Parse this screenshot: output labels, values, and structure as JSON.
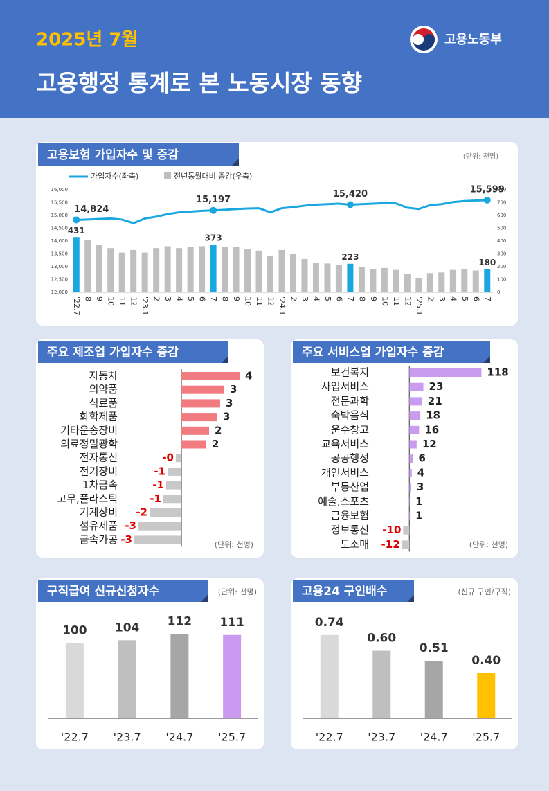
{
  "header": {
    "date": "2025년 7월",
    "title": "고용행정 통계로 본 노동시장 동향",
    "ministry": "고용노동부"
  },
  "chart_data": [
    {
      "type": "combo",
      "title": "고용보험 가입자수 및 증감",
      "unit": "(단위: 천명)",
      "categories": [
        "'22.7",
        "8",
        "9",
        "10",
        "11",
        "12",
        "'23.1",
        "2",
        "3",
        "4",
        "5",
        "6",
        "7",
        "8",
        "9",
        "10",
        "11",
        "12",
        "'24.1",
        "2",
        "3",
        "4",
        "5",
        "6",
        "7",
        "8",
        "9",
        "10",
        "11",
        "12",
        "'25.1",
        "2",
        "3",
        "4",
        "5",
        "6",
        "7"
      ],
      "series": [
        {
          "name": "가입자수(좌축)",
          "type": "line",
          "color": "#1aa7e0",
          "values": [
            14824,
            14840,
            14860,
            14880,
            14840,
            14700,
            14880,
            14950,
            15050,
            15120,
            15150,
            15180,
            15197,
            15220,
            15250,
            15270,
            15280,
            15120,
            15280,
            15320,
            15380,
            15420,
            15440,
            15460,
            15420,
            15440,
            15460,
            15480,
            15470,
            15300,
            15250,
            15400,
            15440,
            15520,
            15560,
            15580,
            15599
          ],
          "value_labels": [
            "14,824",
            null,
            null,
            null,
            null,
            null,
            null,
            null,
            null,
            null,
            null,
            null,
            "15,197",
            null,
            null,
            null,
            null,
            null,
            null,
            null,
            null,
            null,
            null,
            null,
            "15,420",
            null,
            null,
            null,
            null,
            null,
            null,
            null,
            null,
            null,
            null,
            null,
            "15,599"
          ]
        },
        {
          "name": "전년동월대비 증감(우축)",
          "type": "bar",
          "axis": "y2",
          "color": "#bfbfbf",
          "highlight_color": "#1aa7e0",
          "values": [
            431,
            410,
            370,
            345,
            310,
            330,
            310,
            345,
            360,
            345,
            355,
            360,
            373,
            355,
            355,
            335,
            325,
            285,
            330,
            300,
            260,
            230,
            225,
            215,
            223,
            200,
            180,
            190,
            175,
            145,
            110,
            150,
            155,
            175,
            180,
            170,
            180
          ],
          "value_labels": [
            "431",
            null,
            null,
            null,
            null,
            null,
            null,
            null,
            null,
            null,
            null,
            null,
            "373",
            null,
            null,
            null,
            null,
            null,
            null,
            null,
            null,
            null,
            null,
            null,
            "223",
            null,
            null,
            null,
            null,
            null,
            null,
            null,
            null,
            null,
            null,
            null,
            "180"
          ]
        }
      ],
      "ylim": [
        12000,
        16000
      ],
      "yticks": [
        {
          "value": 12000,
          "label": "12,000"
        },
        {
          "value": 12500,
          "label": "12,500"
        },
        {
          "value": 13000,
          "label": "13,000"
        },
        {
          "value": 13500,
          "label": "13,500"
        },
        {
          "value": 14000,
          "label": "14,000"
        },
        {
          "value": 14500,
          "label": "14,500"
        },
        {
          "value": 15000,
          "label": "15,000"
        },
        {
          "value": 15500,
          "label": "15,500"
        },
        {
          "value": 16000,
          "label": "16,000"
        }
      ],
      "y2lim": [
        0,
        800
      ],
      "y2ticks": [
        0,
        100,
        200,
        300,
        400,
        500,
        600,
        700,
        800
      ]
    },
    {
      "type": "hbar",
      "title": "주요 제조업 가입자수 증감",
      "unit": "(단위: 천명)",
      "categories": [
        "자동차",
        "의약품",
        "식료품",
        "화학제품",
        "기타운송장비",
        "의료정밀광학",
        "전자통신",
        "전기장비",
        "1차금속",
        "고무,플라스틱",
        "기계장비",
        "섬유제품",
        "금속가공"
      ],
      "values": [
        4.2,
        3.1,
        2.8,
        2.6,
        2.0,
        1.8,
        -0.4,
        -1.0,
        -1.1,
        -1.3,
        -2.3,
        -3.1,
        -3.4
      ],
      "value_labels": [
        "4",
        "3",
        "3",
        "3",
        "2",
        "2",
        "-0",
        "-1",
        "-1",
        "-1",
        "-2",
        "-3",
        "-3"
      ],
      "color": "#f27b82",
      "negative_color": "#c8c8c8",
      "xlim": [
        -5,
        5
      ]
    },
    {
      "type": "hbar",
      "title": "주요 서비스업 가입자수 증감",
      "unit": "(단위: 천명)",
      "categories": [
        "보건복지",
        "사업서비스",
        "전문과학",
        "숙박음식",
        "운수창고",
        "교육서비스",
        "공공행정",
        "개인서비스",
        "부동산업",
        "예술,스포츠",
        "금융보험",
        "정보통신",
        "도소매"
      ],
      "values": [
        118,
        23,
        21,
        18,
        16,
        12,
        6,
        4,
        3,
        1,
        1,
        -10,
        -12
      ],
      "color": "#c99cf0",
      "negative_color": "#c8c8c8",
      "xlim": [
        -15,
        130
      ]
    },
    {
      "type": "bar",
      "title": "구직급여 신규신청자수",
      "unit": "(단위: 천명)",
      "categories": [
        "'22.7",
        "'23.7",
        "'24.7",
        "'25.7"
      ],
      "values": [
        100,
        104,
        112,
        111
      ],
      "colors": [
        "#d9d9d9",
        "#bfbfbf",
        "#a6a6a6",
        "#cc99f0"
      ],
      "ylim": [
        0,
        120
      ]
    },
    {
      "type": "bar",
      "title": "고용24 구인배수",
      "unit": "(신규 구인/구직)",
      "categories": [
        "'22.7",
        "'23.7",
        "'24.7",
        "'25.7"
      ],
      "values": [
        0.74,
        0.6,
        0.51,
        0.4
      ],
      "value_labels": [
        "0.74",
        "0.60",
        "0.51",
        "0.40"
      ],
      "colors": [
        "#d9d9d9",
        "#bfbfbf",
        "#a6a6a6",
        "#ffc000"
      ],
      "ylim": [
        0,
        0.8
      ]
    }
  ]
}
